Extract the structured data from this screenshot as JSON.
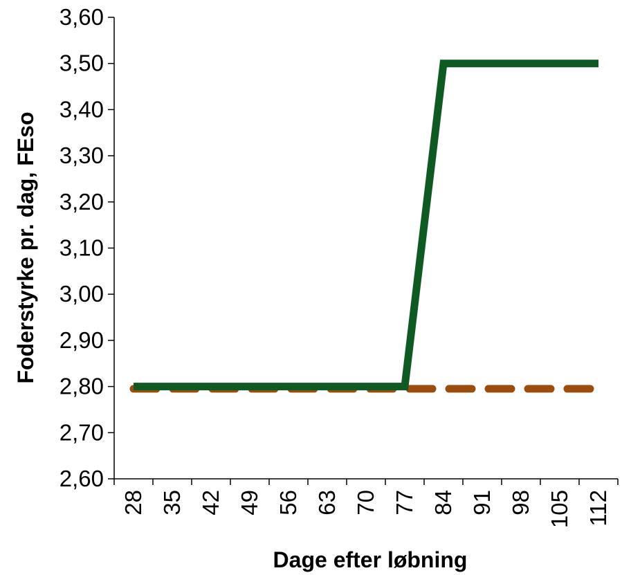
{
  "chart_data": {
    "type": "line",
    "categories": [
      "28",
      "35",
      "42",
      "49",
      "56",
      "63",
      "70",
      "77",
      "84",
      "91",
      "98",
      "105",
      "112"
    ],
    "series": [
      {
        "color": "#0f5a23",
        "style": "solid",
        "values": [
          2.8,
          2.8,
          2.8,
          2.8,
          2.8,
          2.8,
          2.8,
          2.8,
          3.5,
          3.5,
          3.5,
          3.5,
          3.5
        ]
      },
      {
        "color": "#9a4d0c",
        "style": "dashed",
        "values": [
          2.795,
          2.795,
          2.795,
          2.795,
          2.795,
          2.795,
          2.795,
          2.795,
          2.795,
          2.795,
          2.795,
          2.795,
          2.795
        ]
      }
    ],
    "yticks": [
      "2,60",
      "2,70",
      "2,80",
      "2,90",
      "3,00",
      "3,10",
      "3,20",
      "3,30",
      "3,40",
      "3,50",
      "3,60"
    ],
    "ylim": [
      2.6,
      3.6
    ],
    "xlabel": "Dage efter løbning",
    "ylabel": "Foderstyrke pr. dag, FEso",
    "grid": false,
    "legend": "none"
  }
}
